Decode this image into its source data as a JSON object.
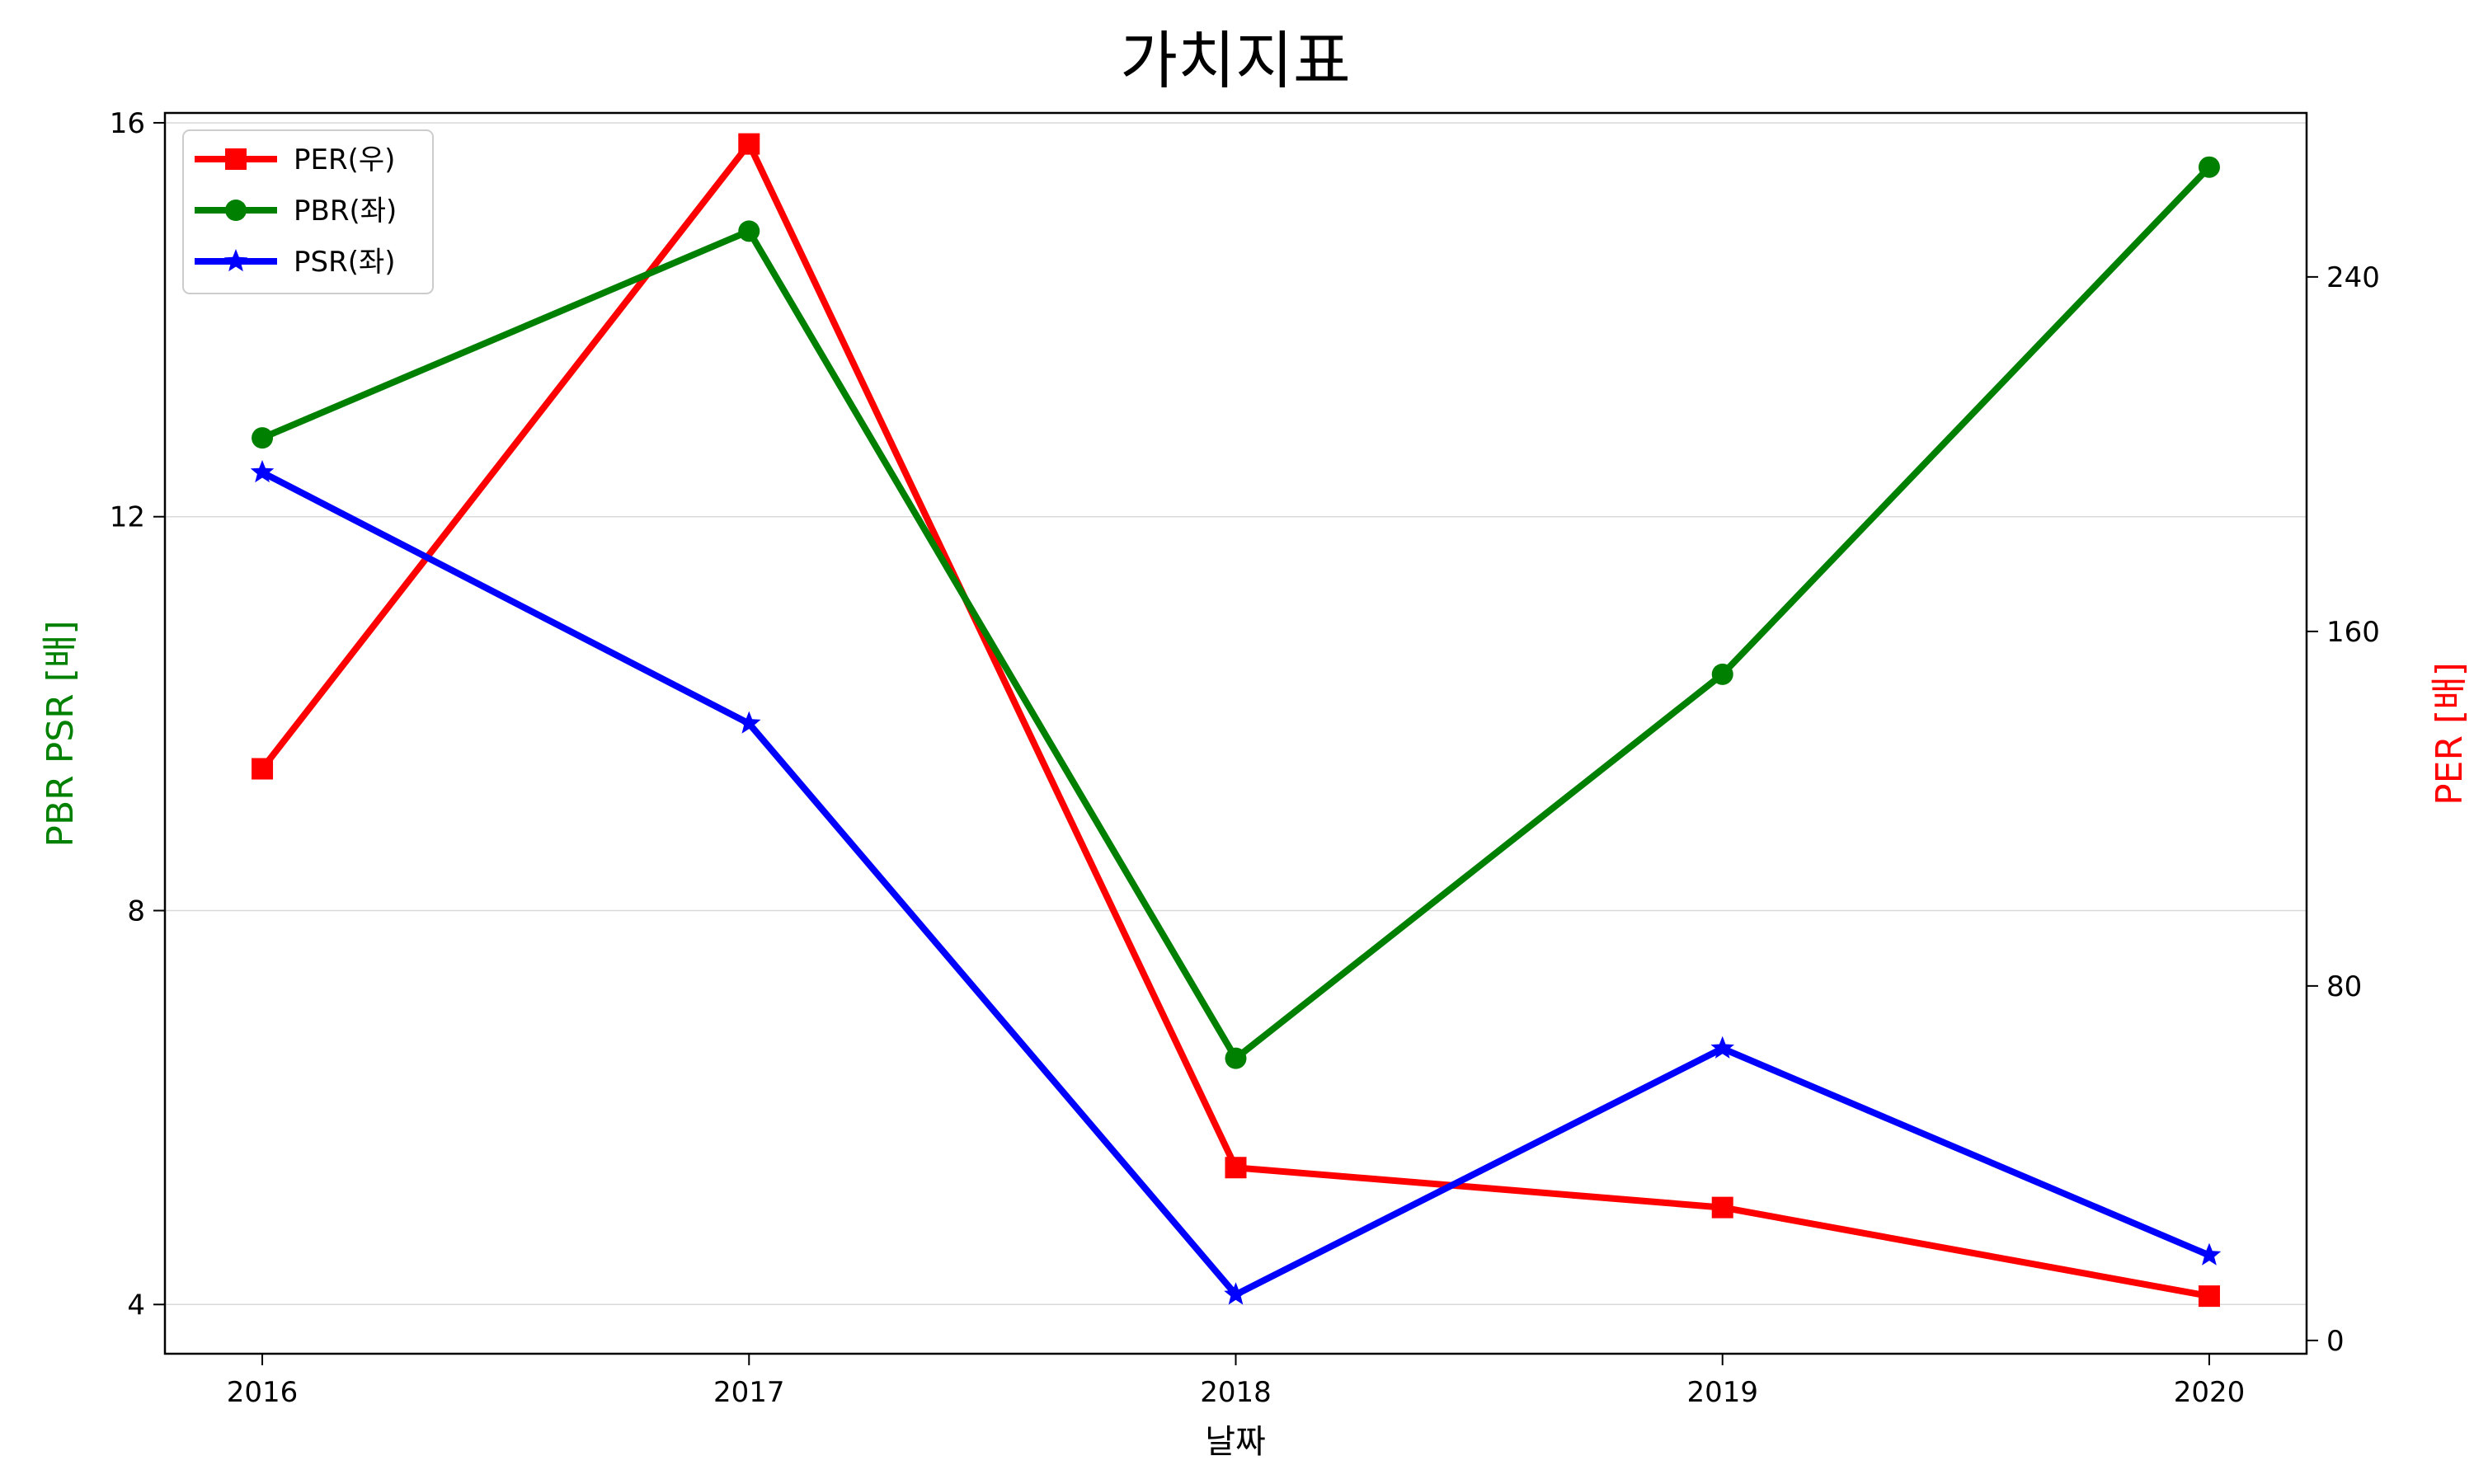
{
  "chart_data": {
    "type": "line",
    "title": "가치지표",
    "xlabel": "날짜",
    "ylabel_left": "PBR PSR [배]",
    "ylabel_right": "PER [배]",
    "x": [
      2016,
      2017,
      2018,
      2019,
      2020
    ],
    "xlim": [
      2015.8,
      2020.2
    ],
    "ylim_left": [
      3.5,
      16.1
    ],
    "ylim_right": [
      -3,
      277
    ],
    "yticks_left": [
      4,
      8,
      12,
      16
    ],
    "yticks_right": [
      0,
      80,
      160,
      240
    ],
    "grid": "horizontal (left axis)",
    "legend_position": "upper-left",
    "series": [
      {
        "name": "PER(우)",
        "axis": "right",
        "color": "#ff0000",
        "marker": "square",
        "values": [
          129,
          270,
          39,
          30,
          10
        ]
      },
      {
        "name": "PBR(좌)",
        "axis": "left",
        "color": "#008000",
        "marker": "circle",
        "values": [
          12.8,
          14.9,
          6.5,
          10.4,
          15.55
        ]
      },
      {
        "name": "PSR(좌)",
        "axis": "left",
        "color": "#0000ff",
        "marker": "star",
        "values": [
          12.45,
          9.9,
          4.1,
          6.6,
          4.5
        ]
      }
    ],
    "colors": {
      "left_label": "#008000",
      "right_label": "#ff0000",
      "grid": "#d9d9d9"
    }
  }
}
